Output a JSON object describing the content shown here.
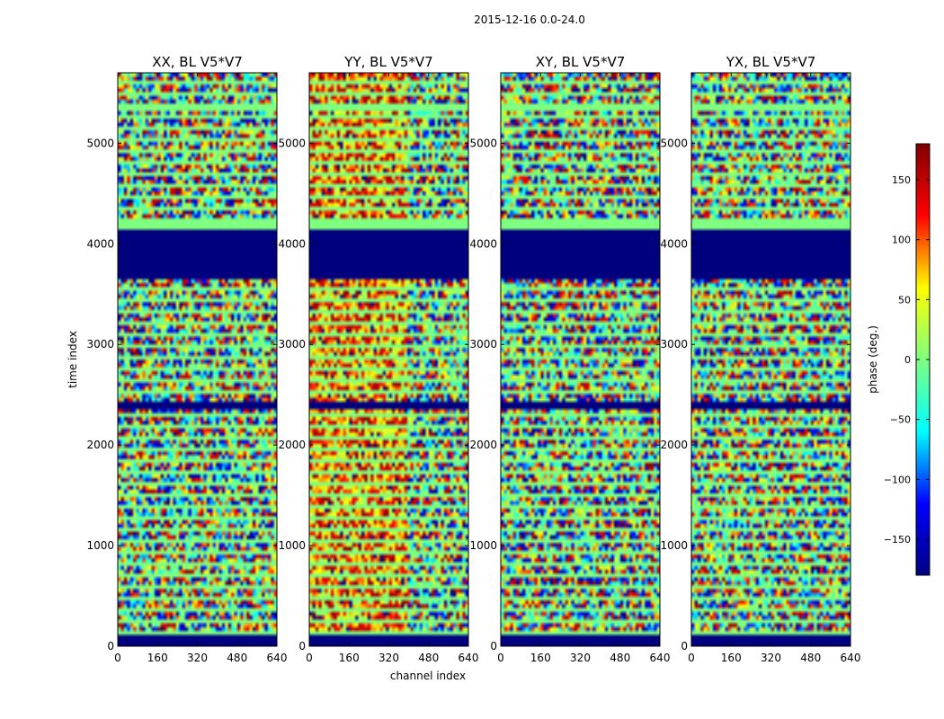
{
  "figure": {
    "suptitle": "2015-12-16 0.0-24.0",
    "xlabel": "channel index",
    "ylabel": "time index",
    "colorbar_label": "phase (deg.)"
  },
  "chart_data": {
    "type": "heatmap",
    "colormap": "jet",
    "colormap_stops": [
      "#00007f",
      "#0000ff",
      "#00ffff",
      "#7fff7f",
      "#ffff00",
      "#ff0000",
      "#7f0000"
    ],
    "value_range": [
      -180,
      180
    ],
    "colorbar_ticks": [
      150,
      100,
      50,
      0,
      -50,
      -100,
      -150
    ],
    "colorbar_tick_labels": [
      "150",
      "100",
      "50",
      "0",
      "−50",
      "−100",
      "−150"
    ],
    "xlim": [
      0,
      640
    ],
    "ylim": [
      0,
      5700
    ],
    "xticks": [
      0,
      160,
      320,
      480,
      640
    ],
    "yticks": [
      0,
      1000,
      2000,
      3000,
      4000,
      5000
    ],
    "panels": [
      {
        "title": "XX, BL V5*V7",
        "structure": "noisy",
        "bias": 0
      },
      {
        "title": "YY, BL V5*V7",
        "structure": "coherent",
        "bias": 95
      },
      {
        "title": "XY, BL V5*V7",
        "structure": "noisy",
        "bias": 0
      },
      {
        "title": "YX, BL V5*V7",
        "structure": "noisy",
        "bias": 0
      }
    ],
    "flagged_time_ranges": [
      [
        0,
        100
      ],
      [
        2340,
        2450
      ],
      [
        3650,
        4150
      ],
      [
        4150,
        4220
      ],
      [
        4480,
        4500
      ],
      [
        5330,
        5400
      ]
    ],
    "flag_values": [
      -180,
      -180,
      -180,
      0,
      0,
      0
    ]
  }
}
